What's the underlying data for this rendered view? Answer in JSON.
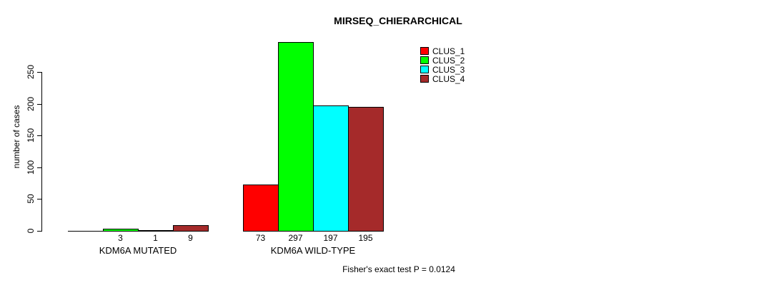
{
  "title": "MIRSEQ_CHIERARCHICAL",
  "ylabel": "number of cases",
  "footnote": "Fisher's exact test P = 0.0124",
  "colors": {
    "clus_1": "#FF0000",
    "clus_2": "#00FF00",
    "clus_3": "#00FFFF",
    "clus_4": "#A52A2A",
    "axis": "#000000",
    "background": "#FFFFFF"
  },
  "chart_data": {
    "type": "bar",
    "title": "MIRSEQ_CHIERARCHICAL",
    "xlabel": "",
    "ylabel": "number of cases",
    "categories": [
      "KDM6A MUTATED",
      "KDM6A WILD-TYPE"
    ],
    "series": [
      {
        "name": "CLUS_1",
        "color": "#FF0000",
        "values": [
          0,
          73
        ]
      },
      {
        "name": "CLUS_2",
        "color": "#00FF00",
        "values": [
          3,
          297
        ]
      },
      {
        "name": "CLUS_3",
        "color": "#00FFFF",
        "values": [
          1,
          197
        ]
      },
      {
        "name": "CLUS_4",
        "color": "#A52A2A",
        "values": [
          9,
          195
        ]
      }
    ],
    "bar_labels": [
      [
        "",
        "3",
        "1",
        "9"
      ],
      [
        "73",
        "297",
        "197",
        "195"
      ]
    ],
    "yticks": [
      0,
      50,
      100,
      150,
      200,
      250
    ],
    "ylim": [
      0,
      250
    ],
    "grid": false,
    "legend_position": "top-right",
    "legend_entries": [
      "CLUS_1",
      "CLUS_2",
      "CLUS_3",
      "CLUS_4"
    ],
    "annotation": "Fisher's exact test P = 0.0124"
  }
}
